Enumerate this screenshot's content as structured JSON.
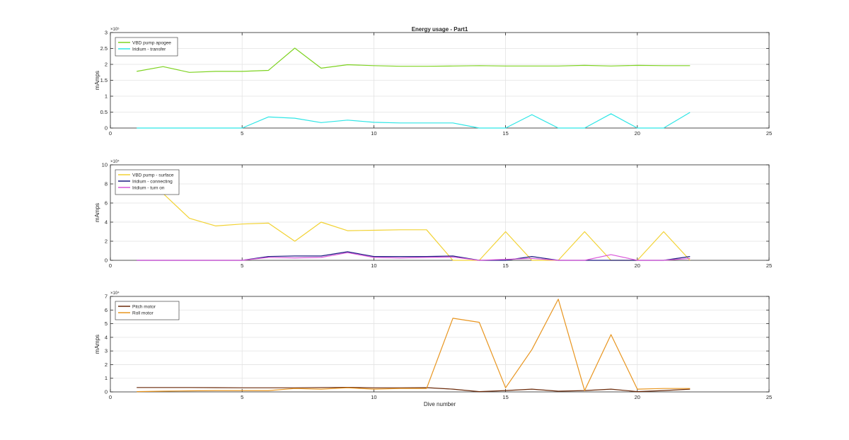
{
  "chart_data": [
    {
      "type": "line",
      "title": "Energy usage - Part1",
      "xlabel": "",
      "ylabel": "mAmps",
      "xlim": [
        0,
        25
      ],
      "ylim": [
        0,
        300000
      ],
      "xticks": [
        0,
        5,
        10,
        15,
        20,
        25
      ],
      "yticks": [
        0,
        50000,
        100000,
        150000,
        200000,
        250000,
        300000
      ],
      "ytick_labels": [
        "0",
        "0.5",
        "1",
        "1.5",
        "2",
        "2.5",
        "3"
      ],
      "exponent_label": "×10⁵",
      "grid": true,
      "legend_position": "top-left",
      "series": [
        {
          "name": "VBD pump apogee",
          "color": "#7ed321",
          "x": [
            1,
            2,
            3,
            4,
            5,
            6,
            7,
            8,
            9,
            10,
            11,
            12,
            13,
            14,
            15,
            16,
            17,
            18,
            19,
            20,
            21,
            22
          ],
          "y": [
            178000,
            193000,
            175000,
            178000,
            178000,
            181000,
            251000,
            188000,
            199000,
            196000,
            194000,
            194000,
            195000,
            196000,
            195000,
            195000,
            195000,
            197000,
            195000,
            197000,
            196000,
            196000
          ]
        },
        {
          "name": "Iridium - transfer",
          "color": "#2ee6e6",
          "x": [
            1,
            2,
            3,
            4,
            5,
            6,
            7,
            8,
            9,
            10,
            11,
            12,
            13,
            14,
            15,
            16,
            17,
            18,
            19,
            20,
            21,
            22
          ],
          "y": [
            0,
            0,
            0,
            0,
            0,
            35000,
            31000,
            17000,
            25000,
            18000,
            16000,
            16000,
            16000,
            0,
            0,
            42000,
            0,
            0,
            45000,
            0,
            0,
            49000
          ]
        }
      ]
    },
    {
      "type": "line",
      "title": "",
      "xlabel": "",
      "ylabel": "mAmps",
      "xlim": [
        0,
        25
      ],
      "ylim": [
        0,
        100000
      ],
      "xticks": [
        0,
        5,
        10,
        15,
        20,
        25
      ],
      "yticks": [
        0,
        20000,
        40000,
        60000,
        80000,
        100000
      ],
      "ytick_labels": [
        "0",
        "2",
        "4",
        "6",
        "8",
        "10"
      ],
      "exponent_label": "×10⁴",
      "grid": true,
      "legend_position": "top-left",
      "series": [
        {
          "name": "VBD pump - surface",
          "color": "#f2d233",
          "x": [
            1,
            2,
            3,
            4,
            5,
            6,
            7,
            8,
            9,
            10,
            11,
            12,
            13,
            14,
            15,
            16,
            17,
            18,
            19,
            20,
            21,
            22
          ],
          "y": [
            90000,
            70000,
            44000,
            36000,
            38000,
            39000,
            20000,
            40000,
            31000,
            31500,
            32000,
            32000,
            0,
            0,
            30000,
            0,
            0,
            30000,
            0,
            0,
            30000,
            0
          ]
        },
        {
          "name": "Iridium - connecting",
          "color": "#1a1a80",
          "x": [
            1,
            2,
            3,
            4,
            5,
            6,
            7,
            8,
            9,
            10,
            11,
            12,
            13,
            14,
            15,
            16,
            17,
            18,
            19,
            20,
            21,
            22
          ],
          "y": [
            0,
            0,
            0,
            0,
            0,
            4000,
            4500,
            4500,
            9000,
            4000,
            4000,
            4000,
            4500,
            0,
            0,
            4000,
            0,
            0,
            0,
            0,
            0,
            4000
          ]
        },
        {
          "name": "Iridium - turn on",
          "color": "#d957d9",
          "x": [
            1,
            2,
            3,
            4,
            5,
            6,
            7,
            8,
            9,
            10,
            11,
            12,
            13,
            14,
            15,
            16,
            17,
            18,
            19,
            20,
            21,
            22
          ],
          "y": [
            0,
            0,
            0,
            0,
            0,
            3000,
            2500,
            3000,
            8000,
            3000,
            2500,
            3000,
            3500,
            0,
            1000,
            2000,
            0,
            0,
            6000,
            0,
            0,
            2000
          ]
        }
      ]
    },
    {
      "type": "line",
      "title": "",
      "xlabel": "Dive number",
      "ylabel": "mAmps",
      "xlim": [
        0,
        25
      ],
      "ylim": [
        0,
        70000
      ],
      "xticks": [
        0,
        5,
        10,
        15,
        20,
        25
      ],
      "yticks": [
        0,
        10000,
        20000,
        30000,
        40000,
        50000,
        60000,
        70000
      ],
      "ytick_labels": [
        "0",
        "1",
        "2",
        "3",
        "4",
        "5",
        "6",
        "7"
      ],
      "exponent_label": "×10⁴",
      "grid": true,
      "legend_position": "top-left",
      "series": [
        {
          "name": "Pitch motor",
          "color": "#6b2a0a",
          "x": [
            1,
            2,
            3,
            4,
            5,
            6,
            7,
            8,
            9,
            10,
            11,
            12,
            13,
            14,
            15,
            16,
            17,
            18,
            19,
            20,
            21,
            22
          ],
          "y": [
            3200,
            3200,
            3200,
            3100,
            3000,
            3000,
            3000,
            3200,
            3300,
            3000,
            3000,
            3100,
            2000,
            200,
            1000,
            2000,
            500,
            1000,
            2000,
            200,
            1000,
            2000
          ]
        },
        {
          "name": "Roll motor",
          "color": "#e8951f",
          "x": [
            1,
            2,
            3,
            4,
            5,
            6,
            7,
            8,
            9,
            10,
            11,
            12,
            13,
            14,
            15,
            16,
            17,
            18,
            19,
            20,
            21,
            22
          ],
          "y": [
            200,
            500,
            800,
            1000,
            1000,
            1000,
            2500,
            2000,
            3000,
            2000,
            2500,
            2500,
            54000,
            51000,
            3000,
            31000,
            68000,
            1000,
            42000,
            2000,
            2500,
            2500
          ]
        }
      ]
    }
  ]
}
